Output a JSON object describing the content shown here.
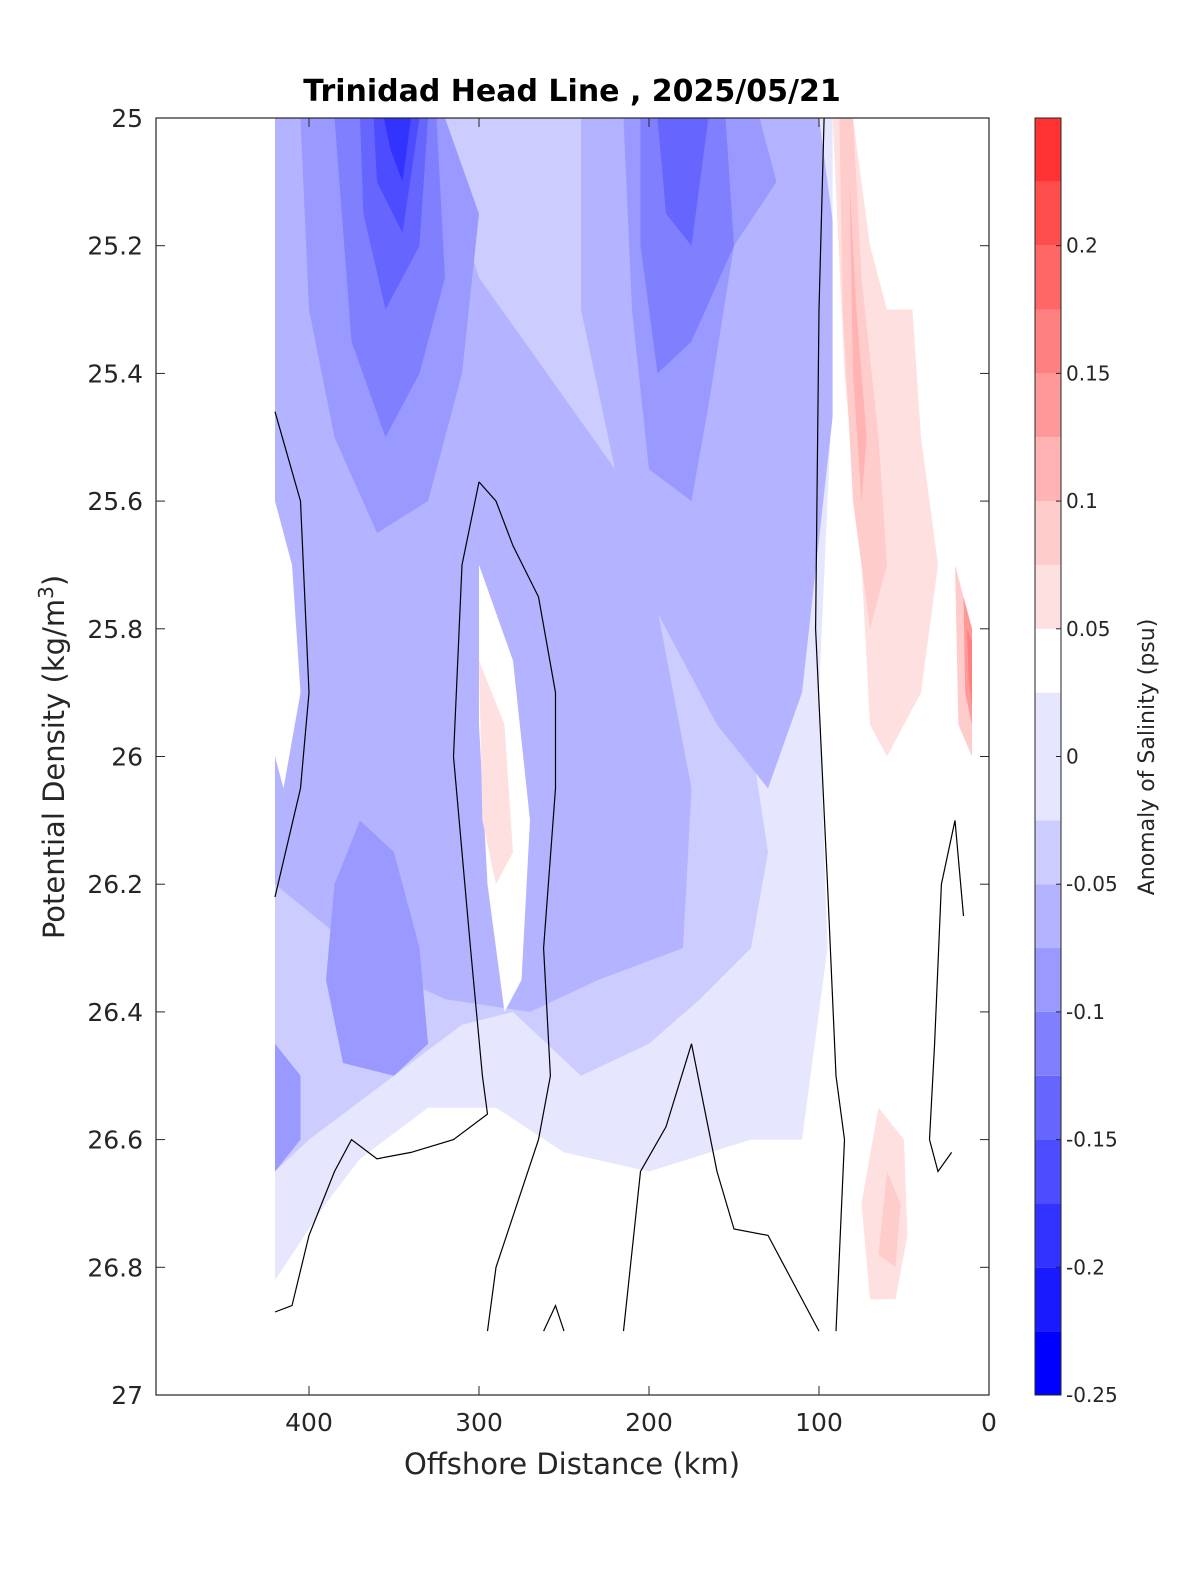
{
  "chart_data": {
    "type": "contour",
    "title": "Trinidad Head Line , 2025/05/21",
    "xlabel": "Offshore Distance (km)",
    "ylabel": "Potential Density (kg/m",
    "ylabel_sup": "3",
    "ylabel_close": ")",
    "xlim": [
      490,
      0
    ],
    "ylim": [
      25,
      27
    ],
    "y_reversed": true,
    "x_reversed": true,
    "x_ticks": [
      400,
      300,
      200,
      100,
      0
    ],
    "y_ticks": [
      25,
      25.2,
      25.4,
      25.6,
      25.8,
      26,
      26.2,
      26.4,
      26.6,
      26.8,
      27
    ],
    "x_tick_labels": [
      "400",
      "300",
      "200",
      "100",
      "0"
    ],
    "y_tick_labels": [
      "25",
      "25.2",
      "25.4",
      "25.6",
      "25.8",
      "26",
      "26.2",
      "26.4",
      "26.6",
      "26.8",
      "27"
    ],
    "colorbar": {
      "label": "Anomaly of Salinity (psu)",
      "range": [
        -0.25,
        0.25
      ],
      "levels": [
        -0.25,
        -0.225,
        -0.2,
        -0.175,
        -0.15,
        -0.125,
        -0.1,
        -0.075,
        -0.05,
        -0.025,
        0.025,
        0.05,
        0.075,
        0.1,
        0.125,
        0.15,
        0.175,
        0.2,
        0.225,
        0.25
      ],
      "tick_values": [
        0.2,
        0.15,
        0.1,
        0.05,
        0,
        -0.05,
        -0.1,
        -0.15,
        -0.2,
        -0.25
      ],
      "tick_labels": [
        "0.2",
        "0.15",
        "0.1",
        "0.05",
        "0",
        "-0.05",
        "-0.1",
        "-0.15",
        "-0.2",
        "-0.25"
      ],
      "colors": [
        "#0000ff",
        "#1a1aff",
        "#3333ff",
        "#4d4dff",
        "#6666ff",
        "#8080ff",
        "#9999ff",
        "#b3b3ff",
        "#ccccff",
        "#e6e6ff",
        "#ffffff",
        "#ffe0e0",
        "#ffcccc",
        "#ffb3b3",
        "#ff9999",
        "#ff8080",
        "#ff6666",
        "#ff4d4d",
        "#ff3333",
        "#ff1a1a"
      ]
    },
    "data_extent": {
      "x": [
        420,
        10
      ],
      "y": [
        25,
        26.9
      ]
    },
    "regions": [
      {
        "level": -0.025,
        "pts": [
          [
            420,
            25
          ],
          [
            85,
            25
          ],
          [
            100,
            25.9
          ],
          [
            95,
            26.3
          ],
          [
            110,
            26.6
          ],
          [
            140,
            26.6
          ],
          [
            200,
            26.65
          ],
          [
            250,
            26.62
          ],
          [
            290,
            26.55
          ],
          [
            330,
            26.55
          ],
          [
            370,
            26.63
          ],
          [
            390,
            26.7
          ],
          [
            420,
            26.82
          ]
        ]
      },
      {
        "level": -0.05,
        "pts": [
          [
            420,
            25
          ],
          [
            210,
            25
          ],
          [
            200,
            25.3
          ],
          [
            160,
            25.5
          ],
          [
            150,
            25.8
          ],
          [
            130,
            26.15
          ],
          [
            140,
            26.3
          ],
          [
            170,
            26.38
          ],
          [
            200,
            26.45
          ],
          [
            240,
            26.5
          ],
          [
            280,
            26.4
          ],
          [
            310,
            26.42
          ],
          [
            350,
            26.5
          ],
          [
            400,
            26.6
          ],
          [
            420,
            26.65
          ]
        ]
      },
      {
        "level": -0.075,
        "pts": [
          [
            420,
            25
          ],
          [
            330,
            25
          ],
          [
            300,
            25.25
          ],
          [
            260,
            25.4
          ],
          [
            220,
            25.55
          ],
          [
            200,
            25.7
          ],
          [
            175,
            26.05
          ],
          [
            180,
            26.3
          ],
          [
            210,
            26.33
          ],
          [
            230,
            26.35
          ],
          [
            270,
            26.4
          ],
          [
            320,
            26.38
          ],
          [
            360,
            26.33
          ],
          [
            420,
            26.2
          ]
        ]
      },
      {
        "level": -0.075,
        "pts": [
          [
            240,
            25
          ],
          [
            100,
            25
          ],
          [
            85,
            25.3
          ],
          [
            110,
            25.9
          ],
          [
            130,
            26.05
          ],
          [
            160,
            25.95
          ],
          [
            200,
            25.75
          ],
          [
            220,
            25.55
          ],
          [
            240,
            25.3
          ]
        ]
      },
      {
        "level": -0.1,
        "pts": [
          [
            405,
            25
          ],
          [
            320,
            25
          ],
          [
            300,
            25.15
          ],
          [
            310,
            25.4
          ],
          [
            330,
            25.6
          ],
          [
            360,
            25.65
          ],
          [
            385,
            25.5
          ],
          [
            400,
            25.3
          ]
        ]
      },
      {
        "level": -0.1,
        "pts": [
          [
            370,
            26.1
          ],
          [
            350,
            26.15
          ],
          [
            335,
            26.3
          ],
          [
            330,
            26.45
          ],
          [
            350,
            26.5
          ],
          [
            380,
            26.48
          ],
          [
            390,
            26.35
          ],
          [
            385,
            26.2
          ]
        ]
      },
      {
        "level": -0.1,
        "pts": [
          [
            420,
            26.45
          ],
          [
            405,
            26.5
          ],
          [
            405,
            26.6
          ],
          [
            420,
            26.65
          ]
        ]
      },
      {
        "level": -0.1,
        "pts": [
          [
            215,
            25
          ],
          [
            135,
            25
          ],
          [
            125,
            25.1
          ],
          [
            150,
            25.2
          ],
          [
            165,
            25.45
          ],
          [
            175,
            25.6
          ],
          [
            200,
            25.55
          ],
          [
            210,
            25.3
          ]
        ]
      },
      {
        "level": -0.125,
        "pts": [
          [
            385,
            25
          ],
          [
            325,
            25
          ],
          [
            320,
            25.25
          ],
          [
            335,
            25.4
          ],
          [
            355,
            25.5
          ],
          [
            375,
            25.35
          ]
        ]
      },
      {
        "level": -0.125,
        "pts": [
          [
            205,
            25
          ],
          [
            155,
            25
          ],
          [
            150,
            25.2
          ],
          [
            175,
            25.35
          ],
          [
            195,
            25.4
          ],
          [
            205,
            25.2
          ]
        ]
      },
      {
        "level": -0.15,
        "pts": [
          [
            370,
            25
          ],
          [
            330,
            25
          ],
          [
            335,
            25.2
          ],
          [
            355,
            25.3
          ],
          [
            368,
            25.15
          ]
        ]
      },
      {
        "level": -0.15,
        "pts": [
          [
            195,
            25
          ],
          [
            165,
            25
          ],
          [
            175,
            25.2
          ],
          [
            190,
            25.15
          ]
        ]
      },
      {
        "level": -0.175,
        "pts": [
          [
            362,
            25
          ],
          [
            335,
            25
          ],
          [
            345,
            25.18
          ],
          [
            360,
            25.1
          ]
        ]
      },
      {
        "level": -0.2,
        "pts": [
          [
            356,
            25
          ],
          [
            340,
            25
          ],
          [
            345,
            25.1
          ],
          [
            352,
            25.05
          ]
        ]
      },
      {
        "level": 0.025,
        "pts": [
          [
            92,
            25
          ],
          [
            68,
            25
          ],
          [
            40,
            25
          ],
          [
            28,
            25.05
          ],
          [
            30,
            25.5
          ],
          [
            15,
            25.8
          ],
          [
            20,
            26.1
          ],
          [
            30,
            26.5
          ],
          [
            42,
            26.6
          ],
          [
            42,
            26.9
          ],
          [
            76,
            26.9
          ],
          [
            80,
            26.6
          ],
          [
            80,
            26.3
          ],
          [
            85,
            26
          ],
          [
            92,
            25.5
          ]
        ]
      },
      {
        "level": 0.025,
        "pts": [
          [
            300,
            25.7
          ],
          [
            280,
            25.85
          ],
          [
            270,
            26.1
          ],
          [
            275,
            26.35
          ],
          [
            285,
            26.4
          ],
          [
            295,
            26.2
          ],
          [
            300,
            25.95
          ]
        ]
      },
      {
        "level": 0.025,
        "pts": [
          [
            420,
            25.6
          ],
          [
            410,
            25.7
          ],
          [
            405,
            25.9
          ],
          [
            415,
            26.05
          ],
          [
            420,
            26
          ]
        ]
      },
      {
        "level": 0.025,
        "pts": [
          [
            330,
            26.6
          ],
          [
            310,
            26.65
          ],
          [
            300,
            26.7
          ],
          [
            320,
            26.8
          ],
          [
            350,
            26.78
          ],
          [
            355,
            26.7
          ]
        ]
      },
      {
        "level": 0.025,
        "pts": [
          [
            380,
            26.72
          ],
          [
            365,
            26.78
          ],
          [
            368,
            26.85
          ],
          [
            385,
            26.85
          ]
        ]
      },
      {
        "level": 0.025,
        "pts": [
          [
            205,
            26.82
          ],
          [
            190,
            26.85
          ],
          [
            185,
            26.9
          ],
          [
            215,
            26.9
          ]
        ]
      },
      {
        "level": 0.05,
        "pts": [
          [
            92,
            25
          ],
          [
            80,
            25
          ],
          [
            70,
            25.2
          ],
          [
            60,
            25.3
          ],
          [
            45,
            25.3
          ],
          [
            40,
            25.5
          ],
          [
            30,
            25.7
          ],
          [
            40,
            25.9
          ],
          [
            60,
            26
          ],
          [
            70,
            25.95
          ],
          [
            75,
            25.7
          ],
          [
            85,
            25.4
          ]
        ]
      },
      {
        "level": 0.05,
        "pts": [
          [
            300,
            25.85
          ],
          [
            285,
            25.95
          ],
          [
            280,
            26.15
          ],
          [
            290,
            26.2
          ],
          [
            298,
            26.1
          ]
        ]
      },
      {
        "level": 0.05,
        "pts": [
          [
            65,
            26.55
          ],
          [
            50,
            26.6
          ],
          [
            48,
            26.75
          ],
          [
            55,
            26.85
          ],
          [
            70,
            26.85
          ],
          [
            75,
            26.7
          ]
        ]
      },
      {
        "level": 0.075,
        "pts": [
          [
            88,
            25
          ],
          [
            80,
            25
          ],
          [
            75,
            25.25
          ],
          [
            65,
            25.5
          ],
          [
            60,
            25.7
          ],
          [
            70,
            25.8
          ],
          [
            80,
            25.6
          ],
          [
            86,
            25.3
          ]
        ]
      },
      {
        "level": 0.075,
        "pts": [
          [
            60,
            26.65
          ],
          [
            52,
            26.7
          ],
          [
            55,
            26.8
          ],
          [
            65,
            26.78
          ]
        ]
      },
      {
        "level": 0.075,
        "pts": [
          [
            20,
            25.7
          ],
          [
            10,
            25.8
          ],
          [
            10,
            26
          ],
          [
            18,
            25.95
          ]
        ]
      },
      {
        "level": 0.1,
        "pts": [
          [
            82,
            25.1
          ],
          [
            78,
            25.3
          ],
          [
            72,
            25.5
          ],
          [
            75,
            25.6
          ],
          [
            80,
            25.4
          ]
        ]
      },
      {
        "level": 0.125,
        "pts": [
          [
            15,
            25.75
          ],
          [
            10,
            25.8
          ],
          [
            10,
            25.95
          ],
          [
            14,
            25.9
          ]
        ]
      },
      {
        "level": 0.15,
        "pts": [
          [
            13,
            25.8
          ],
          [
            10,
            25.82
          ],
          [
            10,
            25.92
          ],
          [
            12,
            25.88
          ]
        ]
      }
    ],
    "zero_contours": [
      [
        [
          420,
          25.46
        ],
        [
          405,
          25.6
        ],
        [
          400,
          25.9
        ],
        [
          405,
          26.05
        ],
        [
          420,
          26.22
        ]
      ],
      [
        [
          300,
          25.57
        ],
        [
          310,
          25.7
        ],
        [
          315,
          26.0
        ],
        [
          305,
          26.3
        ],
        [
          298,
          26.5
        ],
        [
          295,
          26.56
        ],
        [
          315,
          26.6
        ],
        [
          340,
          26.62
        ],
        [
          360,
          26.63
        ],
        [
          375,
          26.6
        ],
        [
          385,
          26.65
        ],
        [
          400,
          26.75
        ],
        [
          410,
          26.86
        ],
        [
          420,
          26.87
        ]
      ],
      [
        [
          300,
          25.57
        ],
        [
          290,
          25.6
        ],
        [
          280,
          25.67
        ],
        [
          265,
          25.75
        ],
        [
          255,
          25.9
        ],
        [
          255,
          26.05
        ],
        [
          262,
          26.3
        ],
        [
          258,
          26.5
        ],
        [
          265,
          26.6
        ],
        [
          280,
          26.72
        ],
        [
          290,
          26.8
        ],
        [
          295,
          26.9
        ]
      ],
      [
        [
          97,
          25.0
        ],
        [
          100,
          25.3
        ],
        [
          102,
          25.8
        ],
        [
          95,
          26.2
        ],
        [
          90,
          26.5
        ],
        [
          85,
          26.6
        ],
        [
          90,
          26.9
        ]
      ],
      [
        [
          100,
          26.9
        ],
        [
          120,
          26.8
        ],
        [
          130,
          26.75
        ],
        [
          150,
          26.74
        ],
        [
          160,
          26.65
        ],
        [
          175,
          26.45
        ],
        [
          190,
          26.58
        ],
        [
          205,
          26.65
        ],
        [
          215,
          26.9
        ]
      ],
      [
        [
          250,
          26.9
        ],
        [
          255,
          26.86
        ],
        [
          262,
          26.9
        ]
      ],
      [
        [
          35,
          26.6
        ],
        [
          32,
          26.45
        ],
        [
          28,
          26.2
        ],
        [
          20,
          26.1
        ],
        [
          15,
          26.25
        ]
      ],
      [
        [
          35,
          26.6
        ],
        [
          30,
          26.65
        ],
        [
          22,
          26.62
        ]
      ]
    ]
  }
}
